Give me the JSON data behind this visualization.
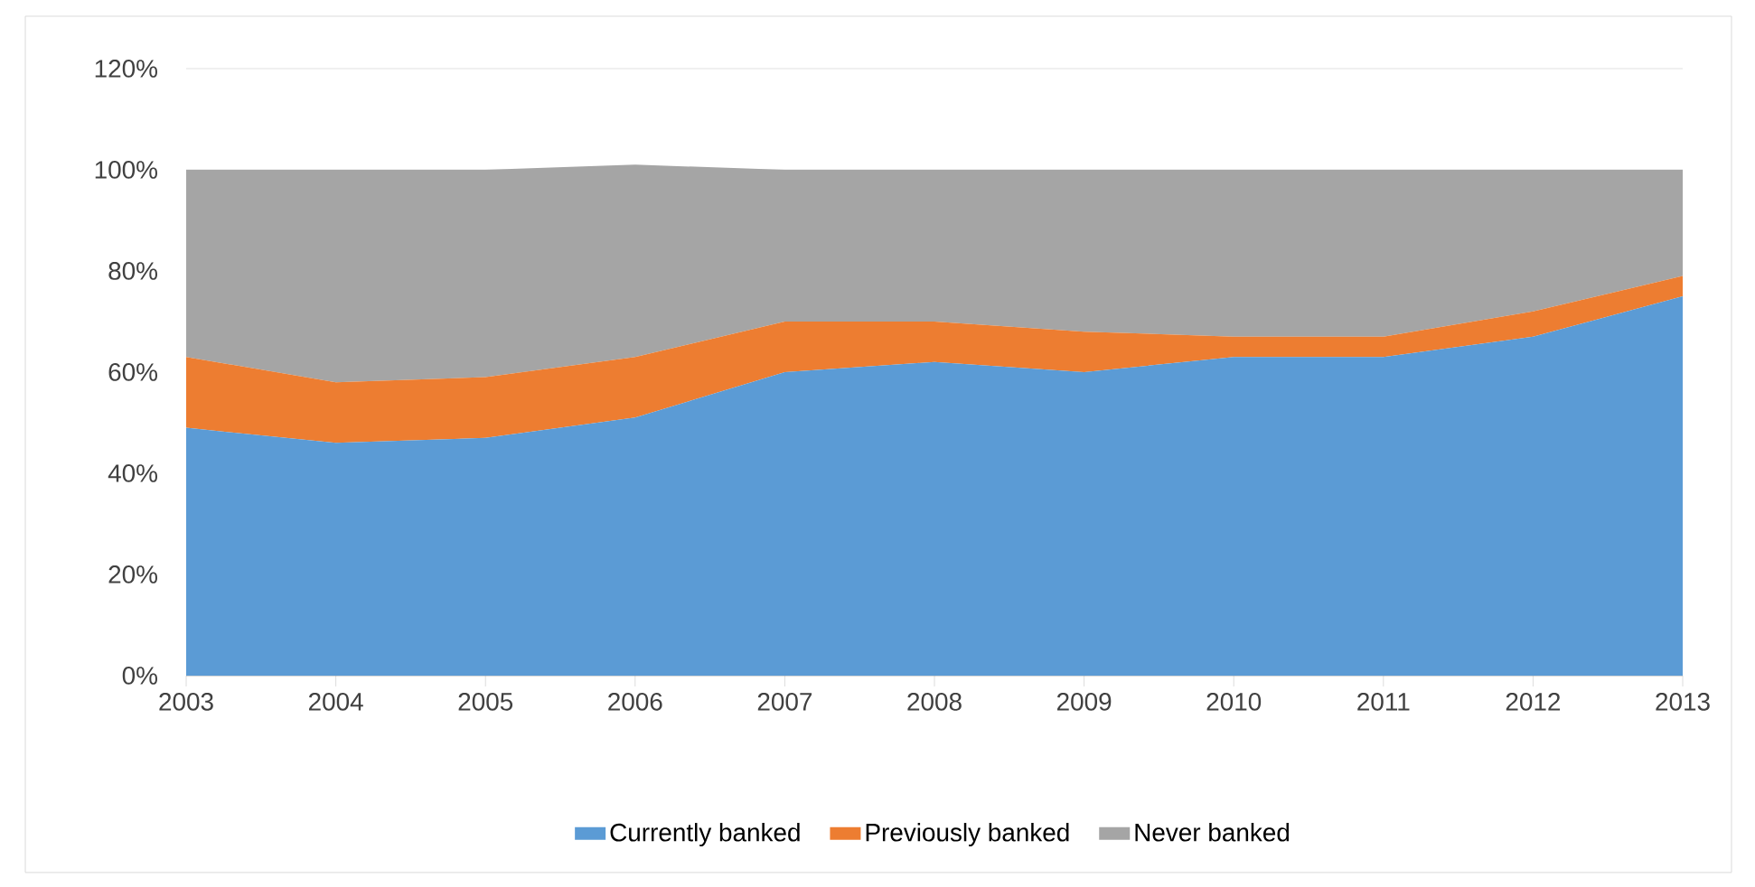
{
  "chart_data": {
    "type": "area",
    "stacked": true,
    "categories": [
      "2003",
      "2004",
      "2005",
      "2006",
      "2007",
      "2008",
      "2009",
      "2010",
      "2011",
      "2012",
      "2013"
    ],
    "series": [
      {
        "name": "Currently banked",
        "color": "#5b9bd5",
        "values": [
          49,
          46,
          47,
          51,
          60,
          62,
          60,
          63,
          63,
          67,
          75
        ]
      },
      {
        "name": "Previously banked",
        "color": "#ed7d31",
        "values": [
          14,
          12,
          12,
          12,
          10,
          8,
          8,
          4,
          4,
          5,
          4
        ]
      },
      {
        "name": "Never banked",
        "color": "#a5a5a5",
        "values": [
          37,
          42,
          41,
          38,
          30,
          30,
          32,
          33,
          33,
          28,
          21
        ]
      }
    ],
    "ylim": [
      0,
      120
    ],
    "yticks": [
      {
        "value": 0,
        "label": "0%"
      },
      {
        "value": 20,
        "label": "20%"
      },
      {
        "value": 40,
        "label": "40%"
      },
      {
        "value": 60,
        "label": "60%"
      },
      {
        "value": 80,
        "label": "80%"
      },
      {
        "value": 100,
        "label": "100%"
      },
      {
        "value": 120,
        "label": "120%"
      }
    ],
    "grid": "y",
    "legend": "bottom"
  }
}
